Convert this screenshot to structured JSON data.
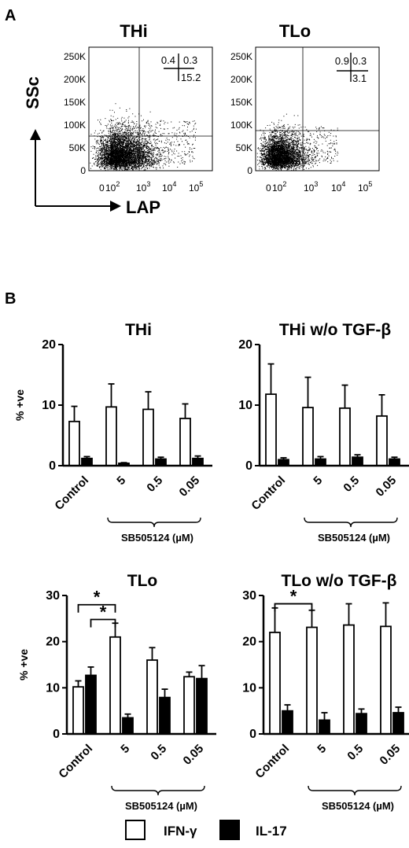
{
  "panels": {
    "a": "A",
    "b": "B"
  },
  "facs": {
    "x_label": "LAP",
    "y_label": "SSc",
    "y_ticks": [
      "250K",
      "200K",
      "150K",
      "100K",
      "50K",
      "0"
    ],
    "x_ticks": [
      "0",
      "10",
      "10",
      "10",
      "10"
    ],
    "x_tick_exponents": [
      "",
      "2",
      "3",
      "4",
      "5"
    ],
    "plots": [
      {
        "title": "THi",
        "quadrants": {
          "upper_left": "0.4",
          "upper_right": "0.3",
          "lower_right": "15.2"
        }
      },
      {
        "title": "TLo",
        "quadrants": {
          "upper_left": "0.9",
          "upper_right": "0.3",
          "lower_right": "3.1"
        }
      }
    ]
  },
  "colors": {
    "ifn": "#ffffff",
    "il17": "#000000",
    "stroke": "#000000"
  },
  "chart_data": [
    {
      "type": "bar",
      "title": "THi",
      "categories": [
        "Control",
        "5",
        "0.5",
        "0.05"
      ],
      "ylabel": "% +ve",
      "group_label": "SB505124 (µM)",
      "ylim": [
        0,
        20
      ],
      "yticks": [
        0,
        10,
        20
      ],
      "series": [
        {
          "name": "IFN-γ",
          "values": [
            7.3,
            9.7,
            9.3,
            7.8
          ],
          "errors": [
            2.5,
            3.8,
            2.9,
            2.4
          ]
        },
        {
          "name": "IL-17",
          "values": [
            1.2,
            0.4,
            1.1,
            1.2
          ],
          "errors": [
            0.3,
            0.1,
            0.3,
            0.4
          ]
        }
      ],
      "significance": []
    },
    {
      "type": "bar",
      "title": "THi w/o TGF-β",
      "categories": [
        "Control",
        "5",
        "0.5",
        "0.05"
      ],
      "ylabel": "",
      "group_label": "SB505124 (µM)",
      "ylim": [
        0,
        20
      ],
      "yticks": [
        0,
        10,
        20
      ],
      "series": [
        {
          "name": "IFN-γ",
          "values": [
            11.8,
            9.6,
            9.5,
            8.2
          ],
          "errors": [
            5.0,
            5.0,
            3.8,
            3.5
          ]
        },
        {
          "name": "IL-17",
          "values": [
            1.0,
            1.1,
            1.4,
            1.1
          ],
          "errors": [
            0.3,
            0.4,
            0.4,
            0.3
          ]
        }
      ],
      "significance": []
    },
    {
      "type": "bar",
      "title": "TLo",
      "categories": [
        "Control",
        "5",
        "0.5",
        "0.05"
      ],
      "ylabel": "% +ve",
      "group_label": "SB505124 (µM)",
      "ylim": [
        0,
        30
      ],
      "yticks": [
        0,
        10,
        20,
        30
      ],
      "series": [
        {
          "name": "IFN-γ",
          "values": [
            10.2,
            21.0,
            16.0,
            12.4
          ],
          "errors": [
            1.3,
            3.0,
            2.7,
            1.0
          ]
        },
        {
          "name": "IL-17",
          "values": [
            12.7,
            3.5,
            7.9,
            12.0
          ],
          "errors": [
            1.8,
            0.8,
            1.8,
            2.8
          ]
        }
      ],
      "significance": [
        {
          "from": [
            "Control",
            "IFN-γ"
          ],
          "to": [
            "5",
            "IFN-γ"
          ],
          "label": "*",
          "y": 28.0
        },
        {
          "from": [
            "Control",
            "IL-17"
          ],
          "to": [
            "5",
            "IFN-γ"
          ],
          "label": "*",
          "y": 24.8
        }
      ]
    },
    {
      "type": "bar",
      "title": "TLo w/o TGF-β",
      "categories": [
        "Control",
        "5",
        "0.5",
        "0.05"
      ],
      "ylabel": "",
      "group_label": "SB505124 (µM)",
      "ylim": [
        0,
        30
      ],
      "yticks": [
        0,
        10,
        20,
        30
      ],
      "series": [
        {
          "name": "IFN-γ",
          "values": [
            22.0,
            23.1,
            23.6,
            23.3
          ],
          "errors": [
            5.3,
            3.7,
            4.6,
            5.1
          ]
        },
        {
          "name": "IL-17",
          "values": [
            5.0,
            3.0,
            4.4,
            4.6
          ],
          "errors": [
            1.3,
            1.6,
            1.0,
            1.2
          ]
        }
      ],
      "significance": [
        {
          "from": [
            "Control",
            "IFN-γ"
          ],
          "to": [
            "5",
            "IFN-γ"
          ],
          "label": "*",
          "y": 28.2
        }
      ]
    }
  ],
  "legend": {
    "position": "bottom-center",
    "items": [
      {
        "label": "IFN-γ",
        "fill": "#ffffff"
      },
      {
        "label": "IL-17",
        "fill": "#000000"
      }
    ]
  }
}
